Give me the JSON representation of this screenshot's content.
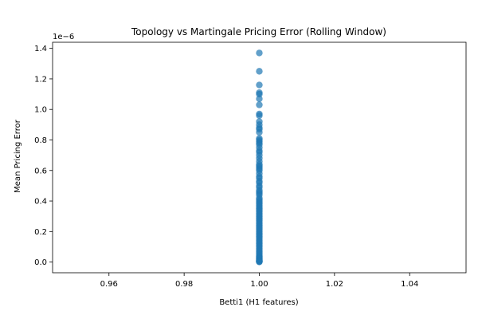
{
  "chart_data": {
    "type": "scatter",
    "title": "Topology vs Martingale Pricing Error (Rolling Window)",
    "xlabel": "Betti1 (H1 features)",
    "ylabel": "Mean Pricing Error",
    "y_offset_label": "1e−6",
    "xlim": [
      0.945,
      1.055
    ],
    "ylim": [
      -0.07,
      1.44
    ],
    "y_scale_factor": 1e-06,
    "x_ticks": [
      0.96,
      0.98,
      1.0,
      1.02,
      1.04
    ],
    "x_tick_labels": [
      "0.96",
      "0.98",
      "1.00",
      "1.02",
      "1.04"
    ],
    "y_ticks": [
      0.0,
      0.2,
      0.4,
      0.6,
      0.8,
      1.0,
      1.2,
      1.4
    ],
    "y_tick_labels": [
      "0.0",
      "0.2",
      "0.4",
      "0.6",
      "0.8",
      "1.0",
      "1.2",
      "1.4"
    ],
    "grid": false,
    "marker_color": "#1f77b4",
    "marker_alpha": 0.7,
    "series": [
      {
        "x": [
          1.0,
          1.0,
          1.0,
          1.0,
          1.0,
          1.0,
          1.0,
          1.0,
          1.0,
          1.0,
          1.0,
          1.0,
          1.0,
          1.0,
          1.0,
          1.0,
          1.0,
          1.0,
          1.0,
          1.0,
          1.0,
          1.0,
          1.0,
          1.0,
          1.0,
          1.0,
          1.0,
          1.0,
          1.0,
          1.0,
          1.0,
          1.0,
          1.0,
          1.0,
          1.0,
          1.0,
          1.0,
          1.0,
          1.0,
          1.0,
          1.0,
          1.0,
          1.0,
          1.0,
          1.0,
          1.0,
          1.0,
          1.0,
          1.0,
          1.0,
          1.0,
          1.0,
          1.0,
          1.0,
          1.0,
          1.0,
          1.0,
          1.0,
          1.0,
          1.0,
          1.0,
          1.0,
          1.0,
          1.0,
          1.0,
          1.0,
          1.0,
          1.0,
          1.0,
          1.0,
          1.0,
          1.0,
          1.0,
          1.0,
          1.0,
          1.0,
          1.0,
          1.0,
          1.0,
          1.0,
          1.0,
          1.0,
          1.0,
          1.0,
          1.0,
          1.0,
          1.0,
          1.0,
          1.0,
          1.0
        ],
        "y": [
          1.37,
          1.25,
          1.16,
          1.11,
          1.1,
          1.07,
          1.03,
          0.97,
          0.96,
          0.92,
          0.9,
          0.88,
          0.87,
          0.85,
          0.81,
          0.8,
          0.79,
          0.78,
          0.77,
          0.75,
          0.73,
          0.72,
          0.7,
          0.68,
          0.66,
          0.64,
          0.63,
          0.62,
          0.61,
          0.6,
          0.58,
          0.56,
          0.55,
          0.53,
          0.52,
          0.5,
          0.49,
          0.47,
          0.46,
          0.45,
          0.44,
          0.42,
          0.41,
          0.4,
          0.39,
          0.38,
          0.37,
          0.36,
          0.35,
          0.34,
          0.33,
          0.32,
          0.31,
          0.3,
          0.29,
          0.28,
          0.27,
          0.26,
          0.25,
          0.24,
          0.23,
          0.22,
          0.21,
          0.2,
          0.19,
          0.18,
          0.17,
          0.16,
          0.15,
          0.14,
          0.13,
          0.12,
          0.11,
          0.1,
          0.09,
          0.08,
          0.07,
          0.06,
          0.05,
          0.04,
          0.035,
          0.03,
          0.025,
          0.02,
          0.015,
          0.01,
          0.008,
          0.005,
          0.003,
          0.001
        ]
      }
    ]
  }
}
